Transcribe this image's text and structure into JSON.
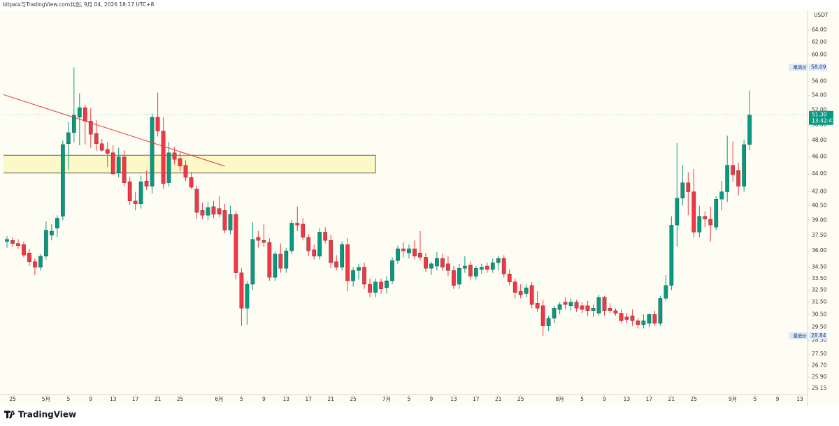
{
  "header": "bitpaix与TradingView.com共创, 9月 04, 2026 18:17 UTC+8",
  "logo": "TradingView",
  "chart_data": {
    "type": "candlestick",
    "currency": "USDT",
    "yscale": "log",
    "grid": false,
    "up_color": "#089981",
    "down_color": "#f23645",
    "x": [
      "2026-04-24",
      "2026-04-25",
      "2026-04-26",
      "2026-04-27",
      "2026-04-28",
      "2026-04-29",
      "2026-04-30",
      "2026-05-01",
      "2026-05-02",
      "2026-05-03",
      "2026-05-04",
      "2026-05-05",
      "2026-05-06",
      "2026-05-07",
      "2026-05-08",
      "2026-05-09",
      "2026-05-10",
      "2026-05-11",
      "2026-05-12",
      "2026-05-13",
      "2026-05-14",
      "2026-05-15",
      "2026-05-16",
      "2026-05-17",
      "2026-05-18",
      "2026-05-19",
      "2026-05-20",
      "2026-05-21",
      "2026-05-22",
      "2026-05-23",
      "2026-05-24",
      "2026-05-25",
      "2026-05-26",
      "2026-05-27",
      "2026-05-28",
      "2026-05-29",
      "2026-05-30",
      "2026-05-31",
      "2026-06-01",
      "2026-06-02",
      "2026-06-03",
      "2026-06-04",
      "2026-06-05",
      "2026-06-06",
      "2026-06-07",
      "2026-06-08",
      "2026-06-09",
      "2026-06-10",
      "2026-06-11",
      "2026-06-12",
      "2026-06-13",
      "2026-06-14",
      "2026-06-15",
      "2026-06-16",
      "2026-06-17",
      "2026-06-18",
      "2026-06-19",
      "2026-06-20",
      "2026-06-21",
      "2026-06-22",
      "2026-06-23",
      "2026-06-24",
      "2026-06-25",
      "2026-06-26",
      "2026-06-27",
      "2026-06-28",
      "2026-06-29",
      "2026-06-30",
      "2026-07-01",
      "2026-07-02",
      "2026-07-03",
      "2026-07-04",
      "2026-07-05",
      "2026-07-06",
      "2026-07-07",
      "2026-07-08",
      "2026-07-09",
      "2026-07-10",
      "2026-07-11",
      "2026-07-12",
      "2026-07-13",
      "2026-07-14",
      "2026-07-15",
      "2026-07-16",
      "2026-07-17",
      "2026-07-18",
      "2026-07-19",
      "2026-07-20",
      "2026-07-21",
      "2026-07-22",
      "2026-07-23",
      "2026-07-24",
      "2026-07-25",
      "2026-07-26",
      "2026-07-27",
      "2026-07-28",
      "2026-07-29",
      "2026-07-30",
      "2026-07-31",
      "2026-08-01",
      "2026-08-02",
      "2026-08-03",
      "2026-08-04",
      "2026-08-05",
      "2026-08-06",
      "2026-08-07",
      "2026-08-08",
      "2026-08-09",
      "2026-08-10",
      "2026-08-11",
      "2026-08-12",
      "2026-08-13",
      "2026-08-14",
      "2026-08-15",
      "2026-08-16",
      "2026-08-17",
      "2026-08-18",
      "2026-08-19",
      "2026-08-20",
      "2026-08-21",
      "2026-08-22",
      "2026-08-23",
      "2026-08-24",
      "2026-08-25",
      "2026-08-26",
      "2026-08-27",
      "2026-08-28",
      "2026-08-29",
      "2026-08-30",
      "2026-08-31",
      "2026-09-01",
      "2026-09-02",
      "2026-09-03",
      "2026-09-04"
    ],
    "open": [
      36.9,
      37.0,
      36.7,
      36.6,
      35.8,
      35.0,
      34.5,
      35.5,
      37.5,
      38.2,
      39.4,
      47.6,
      49.0,
      51.0,
      52.3,
      50.5,
      48.9,
      47.6,
      46.9,
      46.5,
      44.1,
      46.0,
      43.1,
      41.0,
      40.7,
      43.2,
      42.6,
      51.0,
      49.2,
      43.0,
      46.5,
      45.8,
      45.0,
      43.6,
      42.3,
      40.0,
      39.5,
      40.4,
      40.2,
      40.0,
      38.0,
      39.6,
      34.0,
      31.0,
      33.0,
      37.3,
      37.0,
      36.8,
      33.6,
      35.7,
      34.4,
      36.0,
      38.7,
      38.6,
      37.3,
      36.1,
      35.5,
      37.8,
      37.0,
      35.0,
      34.5,
      36.6,
      33.3,
      34.2,
      34.5,
      33.0,
      32.3,
      33.2,
      32.7,
      33.3,
      35.1,
      36.2,
      35.8,
      36.2,
      35.8,
      35.4,
      34.4,
      34.6,
      35.3,
      34.8,
      34.2,
      33.0,
      34.4,
      34.7,
      33.7,
      34.3,
      34.6,
      34.3,
      34.9,
      35.3,
      33.9,
      33.2,
      32.4,
      32.2,
      32.9,
      31.4,
      31.2,
      29.6,
      30.2,
      30.9,
      31.5,
      31.2,
      31.5,
      31.2,
      31.2,
      30.8,
      30.6,
      31.9,
      31.0,
      30.8,
      30.6,
      30.3,
      30.4,
      30.0,
      29.7,
      29.8,
      30.5,
      29.8,
      31.8,
      32.9,
      38.5,
      41.3,
      43.0,
      42.0,
      37.8,
      39.4,
      39.1,
      38.3,
      41.2,
      42.0,
      45.0,
      44.4,
      42.6,
      47.5
    ],
    "high": [
      37.4,
      37.3,
      37.1,
      36.9,
      36.2,
      35.3,
      35.7,
      38.9,
      38.6,
      39.5,
      48.0,
      50.4,
      58.09,
      54.3,
      52.7,
      52.2,
      50.6,
      48.2,
      47.8,
      47.4,
      47.1,
      46.8,
      43.7,
      42.0,
      43.8,
      44.4,
      51.5,
      54.4,
      51.0,
      47.8,
      47.2,
      46.7,
      45.6,
      44.2,
      42.7,
      40.8,
      40.9,
      41.0,
      41.5,
      40.7,
      40.5,
      39.9,
      34.4,
      33.3,
      38.8,
      37.9,
      38.6,
      37.2,
      35.9,
      36.7,
      36.3,
      39.0,
      40.4,
      39.2,
      37.6,
      36.6,
      38.2,
      38.3,
      37.5,
      35.6,
      36.9,
      37.2,
      34.5,
      34.8,
      34.9,
      33.5,
      33.5,
      33.5,
      33.7,
      35.4,
      36.5,
      36.8,
      36.6,
      37.0,
      37.9,
      35.8,
      35.0,
      35.9,
      35.7,
      35.5,
      34.6,
      34.8,
      35.5,
      35.0,
      34.6,
      34.8,
      34.9,
      35.3,
      35.5,
      35.6,
      34.3,
      33.5,
      33.0,
      33.0,
      33.2,
      32.4,
      31.7,
      30.4,
      31.2,
      31.5,
      31.9,
      31.8,
      31.7,
      31.5,
      31.6,
      31.3,
      32.1,
      32.0,
      31.4,
      31.0,
      30.9,
      30.6,
      30.9,
      30.2,
      30.5,
      30.6,
      30.8,
      32.0,
      33.8,
      39.4,
      47.7,
      45.0,
      44.2,
      44.6,
      40.5,
      39.9,
      40.4,
      41.5,
      43.2,
      48.6,
      47.9,
      45.3,
      48.1,
      54.7
    ],
    "low": [
      36.3,
      36.4,
      36.2,
      35.4,
      34.6,
      33.8,
      34.2,
      35.2,
      37.0,
      37.3,
      39.0,
      44.5,
      47.8,
      47.4,
      47.5,
      47.1,
      46.7,
      46.6,
      44.8,
      43.9,
      43.6,
      42.6,
      40.6,
      40.0,
      40.2,
      42.2,
      41.8,
      48.5,
      42.3,
      42.6,
      45.1,
      44.3,
      43.2,
      42.3,
      39.1,
      39.1,
      39.0,
      39.2,
      39.3,
      37.7,
      37.6,
      33.4,
      29.6,
      29.7,
      32.5,
      36.3,
      36.4,
      33.3,
      33.3,
      34.0,
      34.0,
      35.7,
      37.9,
      37.0,
      35.5,
      35.2,
      35.2,
      36.7,
      34.4,
      34.2,
      34.2,
      32.4,
      32.8,
      33.4,
      32.6,
      31.9,
      31.9,
      32.2,
      32.2,
      33.0,
      34.8,
      35.4,
      35.3,
      35.2,
      35.1,
      34.1,
      33.8,
      34.2,
      34.2,
      33.7,
      32.6,
      32.6,
      34.0,
      33.4,
      33.4,
      33.9,
      34.0,
      34.0,
      34.2,
      33.6,
      32.9,
      31.8,
      31.8,
      31.9,
      31.0,
      30.7,
      28.84,
      29.2,
      29.8,
      30.5,
      30.9,
      30.8,
      30.7,
      30.6,
      30.4,
      30.3,
      30.4,
      30.4,
      30.6,
      30.4,
      29.8,
      29.8,
      29.6,
      29.4,
      29.4,
      29.5,
      29.6,
      29.6,
      31.6,
      32.5,
      36.4,
      40.5,
      39.5,
      37.3,
      37.3,
      38.3,
      36.9,
      38.0,
      40.0,
      40.9,
      43.1,
      41.6,
      42.0,
      46.8
    ],
    "close": [
      37.1,
      36.7,
      36.5,
      35.6,
      35.0,
      34.5,
      35.5,
      38.0,
      37.9,
      39.2,
      47.5,
      49.0,
      51.3,
      52.3,
      50.5,
      48.8,
      47.6,
      46.8,
      46.4,
      44.0,
      46.0,
      43.0,
      41.0,
      40.7,
      43.1,
      42.6,
      51.0,
      49.2,
      42.9,
      46.5,
      45.7,
      44.9,
      43.6,
      42.5,
      39.8,
      39.5,
      40.3,
      39.6,
      39.6,
      38.0,
      39.6,
      34.0,
      31.0,
      33.0,
      37.1,
      37.0,
      36.8,
      33.6,
      35.7,
      34.4,
      36.0,
      38.7,
      38.5,
      37.3,
      36.0,
      35.5,
      37.8,
      37.0,
      34.9,
      34.5,
      36.6,
      33.3,
      34.2,
      34.5,
      33.0,
      32.3,
      33.2,
      32.6,
      33.3,
      35.1,
      36.2,
      36.0,
      36.2,
      35.5,
      35.4,
      34.4,
      34.8,
      35.3,
      34.5,
      34.2,
      32.9,
      34.4,
      34.6,
      33.7,
      34.4,
      34.5,
      34.3,
      34.9,
      35.3,
      33.9,
      33.2,
      32.3,
      32.1,
      32.7,
      31.3,
      31.0,
      29.6,
      30.2,
      31.0,
      31.3,
      31.3,
      31.5,
      31.0,
      30.9,
      30.8,
      31.0,
      31.9,
      30.8,
      30.8,
      30.6,
      30.0,
      30.1,
      30.0,
      29.7,
      30.0,
      30.5,
      29.8,
      31.8,
      32.9,
      38.5,
      41.3,
      43.0,
      42.0,
      37.8,
      39.4,
      39.1,
      38.5,
      41.2,
      42.0,
      45.0,
      43.9,
      42.6,
      47.5,
      51.3
    ],
    "xlim": [
      "2026-04-23",
      "2026-09-14"
    ],
    "ylim": [
      24.75,
      67.5
    ],
    "xticks": [
      {
        "value": "2026-04-25",
        "label": "25"
      },
      {
        "value": "2026-05-01",
        "label": "5月"
      },
      {
        "value": "2026-05-05",
        "label": "5"
      },
      {
        "value": "2026-05-09",
        "label": "9"
      },
      {
        "value": "2026-05-13",
        "label": "13"
      },
      {
        "value": "2026-05-17",
        "label": "17"
      },
      {
        "value": "2026-05-21",
        "label": "21"
      },
      {
        "value": "2026-05-25",
        "label": "25"
      },
      {
        "value": "2026-06-01",
        "label": "6月"
      },
      {
        "value": "2026-06-05",
        "label": "5"
      },
      {
        "value": "2026-06-09",
        "label": "9"
      },
      {
        "value": "2026-06-13",
        "label": "13"
      },
      {
        "value": "2026-06-17",
        "label": "17"
      },
      {
        "value": "2026-06-21",
        "label": "21"
      },
      {
        "value": "2026-06-25",
        "label": "25"
      },
      {
        "value": "2026-07-01",
        "label": "7月"
      },
      {
        "value": "2026-07-05",
        "label": "5"
      },
      {
        "value": "2026-07-09",
        "label": "9"
      },
      {
        "value": "2026-07-13",
        "label": "13"
      },
      {
        "value": "2026-07-17",
        "label": "17"
      },
      {
        "value": "2026-07-21",
        "label": "21"
      },
      {
        "value": "2026-07-25",
        "label": "25"
      },
      {
        "value": "2026-08-01",
        "label": "8月"
      },
      {
        "value": "2026-08-05",
        "label": "5"
      },
      {
        "value": "2026-08-09",
        "label": "9"
      },
      {
        "value": "2026-08-13",
        "label": "13"
      },
      {
        "value": "2026-08-17",
        "label": "17"
      },
      {
        "value": "2026-08-21",
        "label": "21"
      },
      {
        "value": "2026-08-25",
        "label": "25"
      },
      {
        "value": "2026-09-01",
        "label": "9月"
      },
      {
        "value": "2026-09-05",
        "label": "5"
      },
      {
        "value": "2026-09-09",
        "label": "9"
      },
      {
        "value": "2026-09-13",
        "label": "13"
      }
    ],
    "yticks": [
      {
        "value": 64,
        "label": "64.00"
      },
      {
        "value": 62,
        "label": "62.00"
      },
      {
        "value": 60,
        "label": "60.00"
      },
      {
        "value": 56,
        "label": "56.00"
      },
      {
        "value": 54,
        "label": "54.00"
      },
      {
        "value": 52,
        "label": "52.00"
      },
      {
        "value": 50,
        "label": "50.00"
      },
      {
        "value": 48,
        "label": "48.00"
      },
      {
        "value": 46,
        "label": "46.00"
      },
      {
        "value": 44,
        "label": "44.00"
      },
      {
        "value": 42,
        "label": "42.00"
      },
      {
        "value": 40.5,
        "label": "40.50"
      },
      {
        "value": 39,
        "label": "39.00"
      },
      {
        "value": 37.5,
        "label": "37.50"
      },
      {
        "value": 36,
        "label": "36.00"
      },
      {
        "value": 34.5,
        "label": "34.50"
      },
      {
        "value": 33.5,
        "label": "33.50"
      },
      {
        "value": 32.5,
        "label": "32.50"
      },
      {
        "value": 31.5,
        "label": "31.50"
      },
      {
        "value": 30.5,
        "label": "30.50"
      },
      {
        "value": 29.5,
        "label": "29.50"
      },
      {
        "value": 28.5,
        "label": "28.50"
      },
      {
        "value": 27.5,
        "label": "27.50"
      },
      {
        "value": 26.7,
        "label": "26.70"
      },
      {
        "value": 25.9,
        "label": "25.90"
      },
      {
        "value": 25.15,
        "label": "25.15"
      }
    ],
    "last_price": {
      "value": 51.3,
      "value_label": "51.30",
      "countdown": "13:42:41"
    },
    "high_marker": {
      "label": "最高价",
      "value": 58.09
    },
    "low_marker": {
      "label": "最低价",
      "value": 28.84
    },
    "trendline": {
      "x": [
        "2026-04-23",
        "2026-06-02"
      ],
      "y": [
        54.2,
        44.9
      ],
      "color": "#e53935"
    },
    "zone": {
      "x": [
        "2026-04-23",
        "2026-06-29"
      ],
      "y": [
        44.1,
        46.2
      ],
      "color": "#fdf8c8"
    }
  }
}
